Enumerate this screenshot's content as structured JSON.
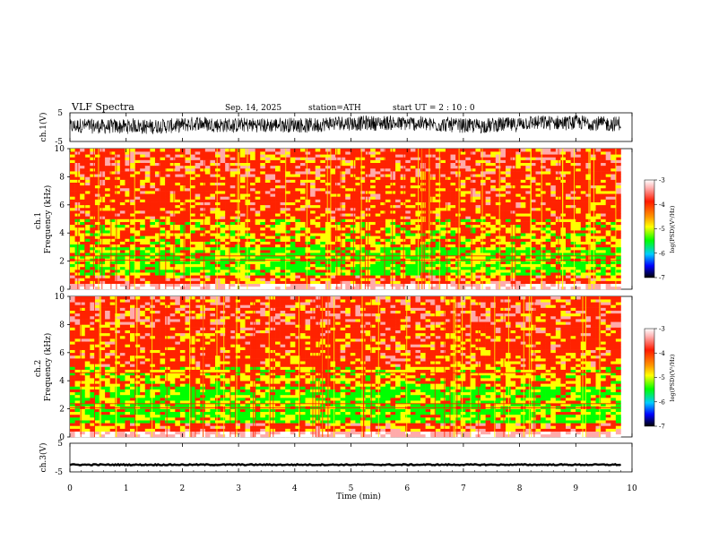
{
  "header": {
    "title": "VLF  Spectra",
    "date": "Sep. 14, 2025",
    "station": "station=ATH",
    "start": "start  UT  =   2  : 10 : 0"
  },
  "chart_data": [
    {
      "id": "ch1_waveform",
      "type": "line",
      "ylabel": "ch.1(V)",
      "ylim": [
        -5,
        5
      ],
      "yticks": [
        "5",
        "-5"
      ],
      "xlim": [
        0,
        10
      ],
      "description_values": "noisy waveform, mean ~0.2 V, envelope approx ±3 V"
    },
    {
      "id": "ch1_spectrogram",
      "type": "heatmap",
      "ylabel": "ch.1\nFrequency  (kHz)",
      "ylabel_lines": [
        "ch.1",
        "Frequency  (kHz)"
      ],
      "ylim": [
        0,
        10
      ],
      "yticks": [
        "0",
        "2",
        "4",
        "6",
        "8",
        "10"
      ],
      "xlim": [
        0,
        9.8
      ],
      "colorbar": {
        "label": "log(PSD)(V²/Hz)",
        "range": [
          -7,
          -3
        ],
        "ticks": [
          "-3",
          "-4",
          "-5",
          "-6",
          "-7"
        ]
      }
    },
    {
      "id": "ch2_spectrogram",
      "type": "heatmap",
      "ylabel_lines": [
        "ch.2",
        "Frequency  (kHz)"
      ],
      "ylim": [
        0,
        10
      ],
      "yticks": [
        "0",
        "2",
        "4",
        "6",
        "8",
        "10"
      ],
      "xlim": [
        0,
        9.8
      ],
      "colorbar": {
        "label": "log(PSD)(V²/Hz)",
        "range": [
          -7,
          -3
        ],
        "ticks": [
          "-3",
          "-4",
          "-5",
          "-6",
          "-7"
        ]
      }
    },
    {
      "id": "ch3_waveform",
      "type": "line",
      "ylabel": "ch.3(V)",
      "ylim": [
        -5,
        5
      ],
      "yticks": [
        "5",
        "-5"
      ],
      "xlim": [
        0,
        10
      ],
      "description_values": "flat line near -2.5 V"
    }
  ],
  "xaxis": {
    "label": "Time  (min)",
    "ticks": [
      "0",
      "1",
      "2",
      "3",
      "4",
      "5",
      "6",
      "7",
      "8",
      "9",
      "10"
    ],
    "range": [
      0,
      10
    ]
  },
  "colors": {
    "red": "#ff2200",
    "yellow": "#ffff00",
    "green": "#00ff00",
    "pink": "#ffaaaa",
    "white": "#ffffff"
  }
}
